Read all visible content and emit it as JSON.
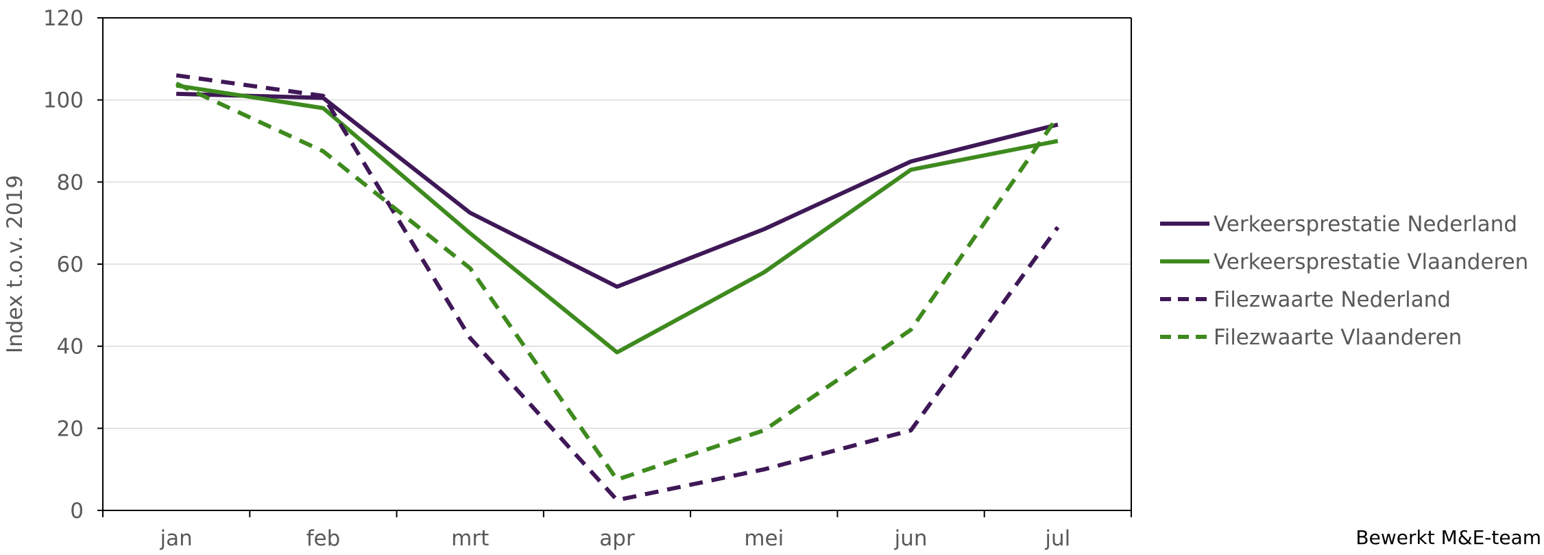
{
  "chart_data": {
    "type": "line",
    "categories": [
      "jan",
      "feb",
      "mrt",
      "apr",
      "mei",
      "jun",
      "jul"
    ],
    "ylabel": "Index t.o.v. 2019",
    "ylim": [
      0,
      120
    ],
    "yticks": [
      0,
      20,
      40,
      60,
      80,
      100,
      120
    ],
    "grid": true,
    "legend_position": "right",
    "series": [
      {
        "name": "Verkeersprestatie Nederland",
        "values": [
          101.5,
          100.5,
          72.5,
          54.5,
          68.5,
          85,
          94
        ],
        "color": "#3f1857",
        "dash": "solid"
      },
      {
        "name": "Verkeersprestatie Vlaanderen",
        "values": [
          103.5,
          98,
          67.5,
          38.5,
          58,
          83,
          90
        ],
        "color": "#3e8a1e",
        "dash": "solid"
      },
      {
        "name": "Filezwaarte Nederland",
        "values": [
          106,
          101,
          42,
          2.5,
          10,
          19.5,
          69
        ],
        "color": "#3f1857",
        "dash": "dashed"
      },
      {
        "name": "Filezwaarte Vlaanderen",
        "values": [
          104,
          87.5,
          59,
          7.5,
          19.5,
          44,
          96
        ],
        "color": "#3e8a1e",
        "dash": "dashed"
      }
    ]
  },
  "footer": {
    "credit": "Bewerkt M&E-team"
  }
}
